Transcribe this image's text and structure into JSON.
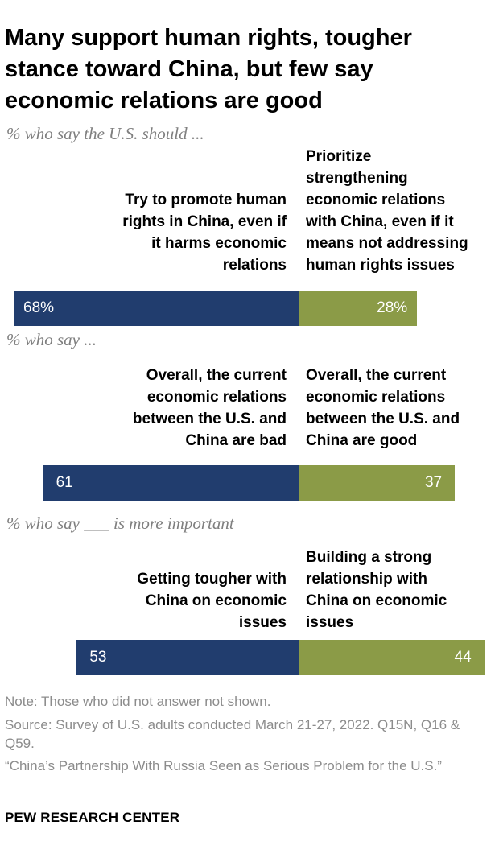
{
  "title": "Many support human rights, tougher stance toward China, but few say economic relations are good",
  "chart_data": [
    {
      "type": "bar",
      "subtitle": "% who say the U.S. should ...",
      "left_label": "Try to promote human\nrights in China, even if\nit harms economic\nrelations",
      "right_label": "Prioritize\nstrengthening\neconomic relations\nwith China, even if it\nmeans not addressing\nhuman rights issues",
      "left_value": 68,
      "right_value": 28,
      "left_text": "68%",
      "right_text": "28%",
      "left_color": "#213d6e",
      "right_color": "#8b9b47"
    },
    {
      "type": "bar",
      "subtitle": "% who say ...",
      "left_label": "Overall, the current\neconomic relations\nbetween the U.S. and\nChina are bad",
      "right_label": "Overall, the current\neconomic relations\nbetween the U.S. and\nChina are good",
      "left_value": 61,
      "right_value": 37,
      "left_text": "61",
      "right_text": "37",
      "left_color": "#213d6e",
      "right_color": "#8b9b47"
    },
    {
      "type": "bar",
      "subtitle": "% who say ___ is more important",
      "left_label": "Getting tougher with\nChina on economic\nissues",
      "right_label": "Building a strong\nrelationship with\nChina on economic\nissues",
      "left_value": 53,
      "right_value": 44,
      "left_text": "53",
      "right_text": "44",
      "left_color": "#213d6e",
      "right_color": "#8b9b47"
    }
  ],
  "footer": {
    "note": "Note: Those who did not answer not shown.",
    "source": "Source: Survey of U.S. adults conducted March 21-27, 2022. Q15N, Q16 & Q59.",
    "report": "“China’s Partnership With Russia Seen as Serious Problem for the U.S.”",
    "brand": "PEW RESEARCH CENTER"
  }
}
